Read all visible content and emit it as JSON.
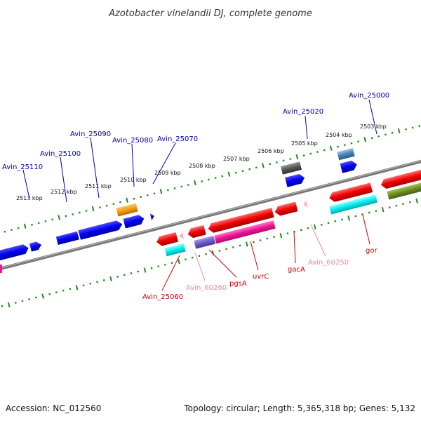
{
  "title": "Azotobacter vinelandii DJ, complete genome",
  "footer": {
    "accession": "Accession: NC_012560",
    "topology": "Topology: circular; Length: 5,365,318 bp; Genes: 5,132"
  },
  "kbp_ticks": [
    "2513 kbp",
    "2512 kbp",
    "2511 kbp",
    "2510 kbp",
    "2509 kbp",
    "2508 kbp",
    "2507 kbp",
    "2506 kbp",
    "2505 kbp",
    "2504 kbp",
    "2503 kbp"
  ],
  "top_labels": [
    "Avin_25110",
    "Avin_25100",
    "Avin_25090",
    "Avin_25080",
    "Avin_25070",
    "Avin_25020",
    "Avin_25000"
  ],
  "bottom_labels": [
    "Avin_25060",
    "Avin_60260",
    "pgsA",
    "uvrC",
    "gacA",
    "Avin_60250",
    "gor"
  ],
  "colors": {
    "backbone": "#888888",
    "tick": "#1e8c1e",
    "forward_gene": "#0000ee",
    "reverse_gene": "#ee0000",
    "forward_label": "#0000aa",
    "reverse_label": "#cc0000",
    "pseudo_label": "#ee88aa"
  }
}
